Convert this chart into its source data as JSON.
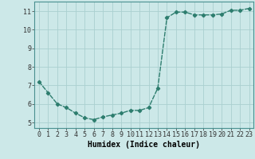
{
  "x": [
    0,
    1,
    2,
    3,
    4,
    5,
    6,
    7,
    8,
    9,
    10,
    11,
    12,
    13,
    14,
    15,
    16,
    17,
    18,
    19,
    20,
    21,
    22,
    23
  ],
  "y": [
    7.2,
    6.6,
    6.0,
    5.8,
    5.5,
    5.25,
    5.15,
    5.3,
    5.4,
    5.5,
    5.65,
    5.65,
    5.8,
    6.85,
    10.65,
    10.95,
    10.95,
    10.8,
    10.8,
    10.8,
    10.85,
    11.05,
    11.05,
    11.15
  ],
  "line_color": "#2d7d6e",
  "bg_color": "#cce8e8",
  "grid_color": "#aad0d0",
  "xlabel": "Humidex (Indice chaleur)",
  "xlim": [
    -0.5,
    23.5
  ],
  "ylim": [
    4.7,
    11.5
  ],
  "yticks": [
    5,
    6,
    7,
    8,
    9,
    10,
    11
  ],
  "xticks": [
    0,
    1,
    2,
    3,
    4,
    5,
    6,
    7,
    8,
    9,
    10,
    11,
    12,
    13,
    14,
    15,
    16,
    17,
    18,
    19,
    20,
    21,
    22,
    23
  ],
  "marker": "D",
  "marker_size": 2.2,
  "line_width": 1.0,
  "xlabel_fontsize": 7.0,
  "tick_fontsize": 6.0
}
